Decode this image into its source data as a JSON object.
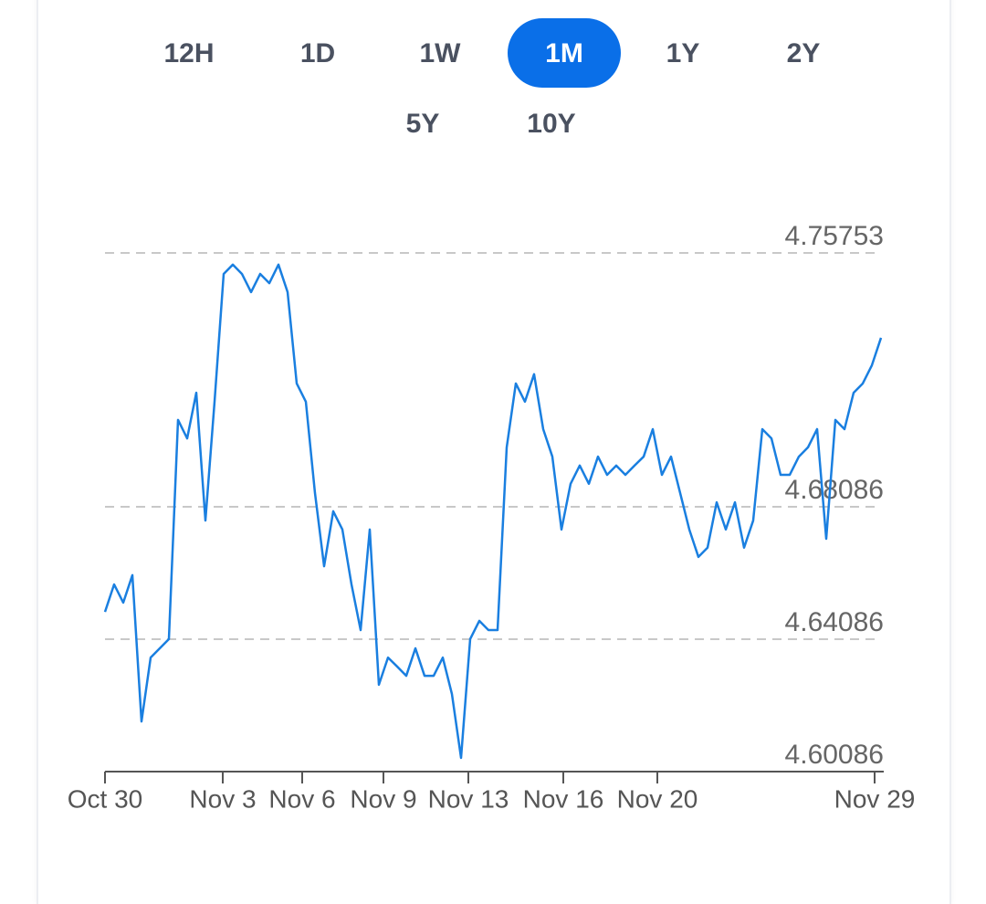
{
  "range_buttons": {
    "options": [
      "12H",
      "1D",
      "1W",
      "1M",
      "1Y",
      "2Y",
      "5Y",
      "10Y"
    ],
    "selected": "1M"
  },
  "chart_data": {
    "type": "line",
    "color": "#1a7fe0",
    "values": [
      4.6491,
      4.6574,
      4.6519,
      4.6602,
      4.616,
      4.6353,
      4.6381,
      4.6409,
      4.7071,
      4.7015,
      4.7153,
      4.6767,
      4.7126,
      4.7512,
      4.754,
      4.7512,
      4.7457,
      4.7512,
      4.7484,
      4.754,
      4.7457,
      4.7181,
      4.7126,
      4.685,
      4.6629,
      4.6795,
      4.674,
      4.6574,
      4.6436,
      4.674,
      4.6271,
      4.6353,
      4.6326,
      4.6298,
      4.6381,
      4.6298,
      4.6298,
      4.6353,
      4.6243,
      4.605,
      4.6409,
      4.6464,
      4.6436,
      4.6436,
      4.6988,
      4.7181,
      4.7126,
      4.7209,
      4.7043,
      4.696,
      4.674,
      4.6878,
      4.6933,
      4.6878,
      4.696,
      4.6905,
      4.6933,
      4.6905,
      4.6933,
      4.696,
      4.7043,
      4.6905,
      4.696,
      4.685,
      4.674,
      4.6657,
      4.6685,
      4.6822,
      4.674,
      4.6822,
      4.6685,
      4.6767,
      4.7043,
      4.7015,
      4.6905,
      4.6905,
      4.696,
      4.6988,
      4.7043,
      4.6712,
      4.7071,
      4.7043,
      4.7153,
      4.7181,
      4.7236,
      4.7319
    ],
    "xlim": [
      0,
      85
    ],
    "xticks": [
      {
        "value": 0,
        "label": "Oct 30"
      },
      {
        "value": 12.9,
        "label": "Nov 3"
      },
      {
        "value": 21.6,
        "label": "Nov 6"
      },
      {
        "value": 30.5,
        "label": "Nov 9"
      },
      {
        "value": 39.8,
        "label": "Nov 13"
      },
      {
        "value": 50.2,
        "label": "Nov 16"
      },
      {
        "value": 60.5,
        "label": "Nov 20"
      },
      {
        "value": 84.3,
        "label": "Nov 29"
      }
    ],
    "ylim": [
      4.60086,
      4.75753
    ],
    "yticks": [
      4.60086,
      4.64086,
      4.68086,
      4.75753
    ],
    "grid": true
  }
}
